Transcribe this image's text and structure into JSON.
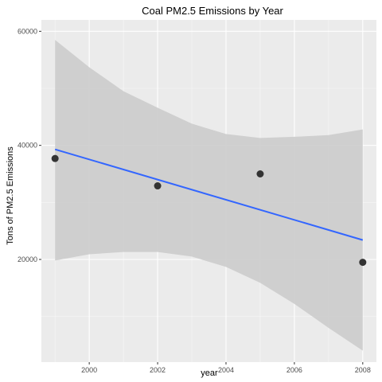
{
  "chart_data": {
    "type": "scatter",
    "title": "Coal PM2.5 Emissions by Year",
    "xlabel": "year",
    "ylabel": "Tons of PM2.5 Emissions",
    "xlim": [
      1998.6,
      2008.4
    ],
    "ylim": [
      2000,
      62000
    ],
    "x_ticks": [
      2000,
      2002,
      2004,
      2006,
      2008
    ],
    "x_tick_labels": [
      "2000",
      "2002",
      "2004",
      "2006",
      "2008"
    ],
    "y_ticks": [
      20000,
      40000,
      60000
    ],
    "y_tick_labels": [
      "20000",
      "40000",
      "60000"
    ],
    "grid": true,
    "points": [
      {
        "x": 1999,
        "y": 37700
      },
      {
        "x": 2002,
        "y": 32900
      },
      {
        "x": 2005,
        "y": 35000
      },
      {
        "x": 2008,
        "y": 19500
      }
    ],
    "trend_line": {
      "method": "linear regression",
      "start": {
        "x": 1999,
        "y": 39300
      },
      "end": {
        "x": 2008,
        "y": 23400
      }
    },
    "confidence_band": {
      "x": [
        1999,
        2000,
        2001,
        2002,
        2003,
        2004,
        2005,
        2006,
        2007,
        2008
      ],
      "lower": [
        19800,
        20900,
        21300,
        21300,
        20500,
        18700,
        15900,
        12200,
        8000,
        4000
      ],
      "upper": [
        58500,
        53700,
        49500,
        46600,
        43800,
        42000,
        41300,
        41500,
        41800,
        42800
      ]
    },
    "colors": {
      "panel_background": "#ebebeb",
      "grid_major": "#ffffff",
      "point": "#333333",
      "line": "#3366ff",
      "band": "#cccccc"
    }
  }
}
